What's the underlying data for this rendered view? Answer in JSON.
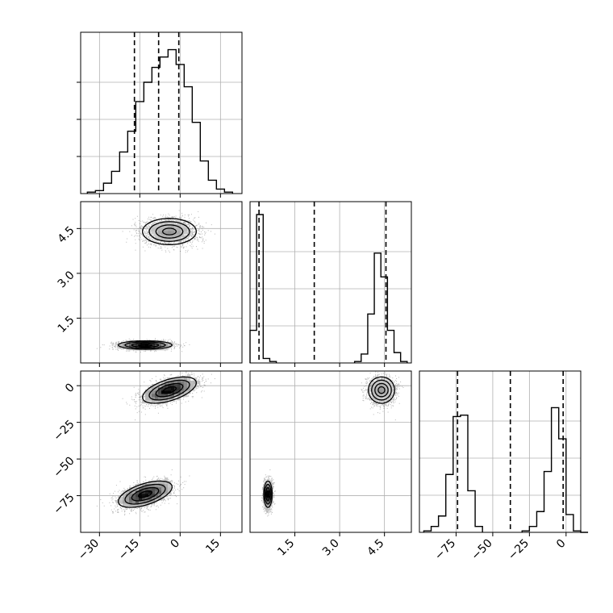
{
  "chart_data": {
    "type": "corner",
    "grid": true,
    "colors": {
      "line": "#000000",
      "grid": "#b0b0b0",
      "points": "#000000"
    },
    "parameters": [
      {
        "range": [
          -37,
          23
        ],
        "ticks": [
          -30,
          -15,
          0,
          15
        ],
        "tick_labels": [
          "−30",
          "−15",
          "0",
          "15"
        ]
      },
      {
        "range": [
          0.0,
          5.4
        ],
        "ticks": [
          1.5,
          3.0,
          4.5
        ],
        "tick_labels": [
          "1.5",
          "3.0",
          "4.5"
        ]
      },
      {
        "range": [
          -100,
          10
        ],
        "ticks": [
          -75,
          -50,
          -25,
          0
        ],
        "tick_labels": [
          "−75",
          "−50",
          "−25",
          "0"
        ]
      }
    ],
    "quantiles": [
      [
        -17,
        -8,
        -0.5
      ],
      [
        0.3,
        2.15,
        4.55
      ],
      [
        -74,
        -38,
        -2
      ]
    ],
    "histograms": [
      {
        "bins": [
          -34.5,
          -31.5,
          -28.5,
          -25.5,
          -22.5,
          -19.5,
          -16.5,
          -13.5,
          -10.5,
          -7.5,
          -4.5,
          -1.5,
          1.5,
          4.5,
          7.5,
          10.5,
          13.5,
          16.5
        ],
        "counts": [
          0.01,
          0.02,
          0.07,
          0.15,
          0.28,
          0.42,
          0.62,
          0.75,
          0.85,
          0.92,
          0.97,
          0.87,
          0.72,
          0.48,
          0.22,
          0.09,
          0.03,
          0.01
        ]
      },
      {
        "bins": [
          0.0,
          0.22,
          0.44,
          0.66,
          3.5,
          3.72,
          3.94,
          4.16,
          4.38,
          4.6,
          4.82,
          5.04
        ],
        "counts": [
          0.22,
          1.0,
          0.03,
          0.01,
          0.01,
          0.06,
          0.33,
          0.74,
          0.58,
          0.22,
          0.07,
          0.01
        ]
      },
      {
        "bins": [
          -97,
          -92,
          -87,
          -82,
          -77,
          -72,
          -67,
          -62,
          -30,
          -25,
          -20,
          -15,
          -10,
          -5,
          0,
          5,
          10
        ],
        "counts": [
          0.01,
          0.04,
          0.11,
          0.39,
          0.78,
          0.79,
          0.28,
          0.04,
          0.01,
          0.04,
          0.14,
          0.41,
          0.84,
          0.63,
          0.12,
          0.01,
          0.0
        ]
      }
    ],
    "clusters": [
      {
        "mean": [
          -13,
          0.6,
          -74
        ],
        "sd": [
          5.0,
          0.07,
          4.5
        ],
        "corr02": 0.55,
        "weight": 0.5
      },
      {
        "mean": [
          -4,
          4.4,
          -3
        ],
        "sd": [
          5.0,
          0.22,
          4.5
        ],
        "corr02": 0.55,
        "weight": 0.5
      }
    ]
  }
}
